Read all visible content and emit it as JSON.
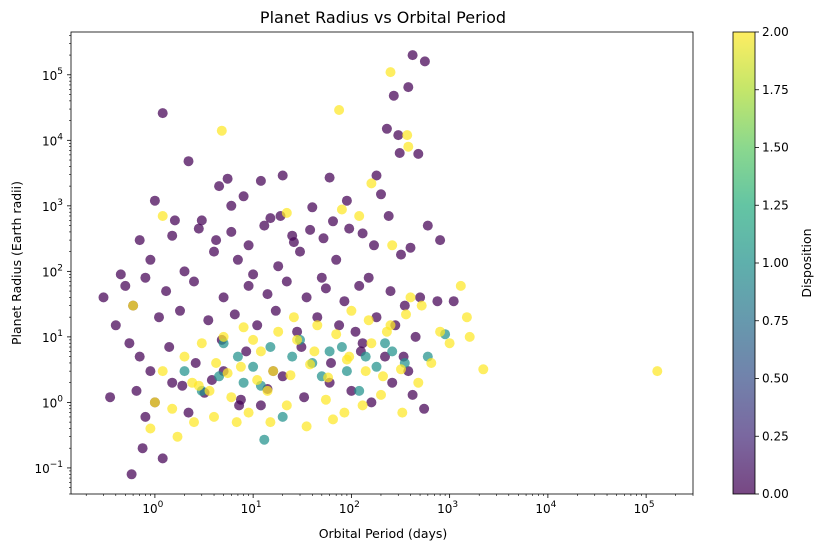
{
  "chart_data": {
    "type": "scatter",
    "title": "Planet Radius vs Orbital Period",
    "xlabel": "Orbital Period (days)",
    "ylabel": "Planet Radius (Earth radii)",
    "xscale": "log",
    "yscale": "log",
    "xlim": [
      0.14,
      300000
    ],
    "ylim": [
      0.04,
      450000
    ],
    "x_ticks": [
      {
        "value": 1,
        "base": "10",
        "exp": "0"
      },
      {
        "value": 10,
        "base": "10",
        "exp": "1"
      },
      {
        "value": 100,
        "base": "10",
        "exp": "2"
      },
      {
        "value": 1000,
        "base": "10",
        "exp": "3"
      },
      {
        "value": 10000,
        "base": "10",
        "exp": "4"
      },
      {
        "value": 100000,
        "base": "10",
        "exp": "5"
      }
    ],
    "y_ticks": [
      {
        "value": 0.1,
        "base": "10",
        "exp": "−1"
      },
      {
        "value": 1,
        "base": "10",
        "exp": "0"
      },
      {
        "value": 10,
        "base": "10",
        "exp": "1"
      },
      {
        "value": 100,
        "base": "10",
        "exp": "2"
      },
      {
        "value": 1000,
        "base": "10",
        "exp": "3"
      },
      {
        "value": 10000,
        "base": "10",
        "exp": "4"
      },
      {
        "value": 100000,
        "base": "10",
        "exp": "5"
      }
    ],
    "grid": false,
    "colorbar": {
      "label": "Disposition",
      "colormap": "viridis",
      "range": [
        0,
        2
      ],
      "ticks": [
        "0.00",
        "0.25",
        "0.50",
        "0.75",
        "1.00",
        "1.25",
        "1.50",
        "1.75",
        "2.00"
      ]
    },
    "colors": {
      "low": "#440154",
      "mid": "#21918c",
      "high": "#fde725"
    },
    "series": [
      {
        "color_value": 0,
        "points": [
          [
            1.2,
            26000
          ],
          [
            2.2,
            4800
          ],
          [
            5.5,
            2600
          ],
          [
            12,
            2400
          ],
          [
            20,
            2900
          ],
          [
            60,
            2700
          ],
          [
            180,
            2900
          ],
          [
            230,
            15000
          ],
          [
            270,
            48000
          ],
          [
            300,
            12000
          ],
          [
            380,
            65000
          ],
          [
            420,
            200000
          ],
          [
            560,
            160000
          ],
          [
            480,
            6200
          ],
          [
            310,
            6400
          ],
          [
            1.0,
            1200
          ],
          [
            4.5,
            2000
          ],
          [
            8,
            1400
          ],
          [
            40,
            950
          ],
          [
            90,
            1200
          ],
          [
            200,
            1500
          ],
          [
            400,
            230
          ],
          [
            600,
            500
          ],
          [
            800,
            300
          ],
          [
            750,
            35
          ],
          [
            1100,
            35
          ],
          [
            1.5,
            350
          ],
          [
            0.7,
            300
          ],
          [
            3,
            600
          ],
          [
            6,
            400
          ],
          [
            15,
            650
          ],
          [
            25,
            350
          ],
          [
            0.9,
            150
          ],
          [
            2,
            100
          ],
          [
            4,
            200
          ],
          [
            7,
            150
          ],
          [
            10,
            90
          ],
          [
            18,
            120
          ],
          [
            30,
            200
          ],
          [
            50,
            80
          ],
          [
            70,
            150
          ],
          [
            120,
            60
          ],
          [
            0.5,
            60
          ],
          [
            0.8,
            80
          ],
          [
            1.3,
            50
          ],
          [
            2.5,
            70
          ],
          [
            5,
            40
          ],
          [
            9,
            60
          ],
          [
            14,
            45
          ],
          [
            22,
            70
          ],
          [
            35,
            40
          ],
          [
            55,
            55
          ],
          [
            85,
            35
          ],
          [
            150,
            80
          ],
          [
            250,
            50
          ],
          [
            350,
            30
          ],
          [
            500,
            40
          ],
          [
            0.6,
            30
          ],
          [
            1.1,
            20
          ],
          [
            1.8,
            25
          ],
          [
            3.5,
            18
          ],
          [
            6.5,
            22
          ],
          [
            11,
            15
          ],
          [
            17,
            25
          ],
          [
            28,
            12
          ],
          [
            45,
            20
          ],
          [
            75,
            15
          ],
          [
            110,
            12
          ],
          [
            180,
            20
          ],
          [
            280,
            15
          ],
          [
            450,
            10
          ],
          [
            0.4,
            15
          ],
          [
            0.55,
            8
          ],
          [
            0.65,
            1.5
          ],
          [
            0.8,
            0.6
          ],
          [
            0.58,
            0.08
          ],
          [
            0.75,
            0.2
          ],
          [
            1.2,
            0.14
          ],
          [
            1.0,
            1.0
          ],
          [
            1.5,
            2
          ],
          [
            2.2,
            0.7
          ],
          [
            3.2,
            1.4
          ],
          [
            5,
            3
          ],
          [
            7.5,
            1.1
          ],
          [
            12,
            0.9
          ],
          [
            20,
            2.5
          ],
          [
            33,
            1.2
          ],
          [
            60,
            2
          ],
          [
            100,
            1.5
          ],
          [
            160,
            1
          ],
          [
            260,
            2
          ],
          [
            420,
            1.3
          ],
          [
            550,
            0.8
          ],
          [
            380,
            3
          ],
          [
            220,
            5
          ],
          [
            130,
            8
          ],
          [
            0.35,
            1.2
          ],
          [
            0.3,
            40
          ],
          [
            0.45,
            90
          ],
          [
            1.6,
            600
          ],
          [
            2.8,
            450
          ],
          [
            4.2,
            300
          ],
          [
            6,
            1000
          ],
          [
            9,
            250
          ],
          [
            13,
            500
          ],
          [
            19,
            700
          ],
          [
            26,
            280
          ],
          [
            38,
            430
          ],
          [
            52,
            320
          ],
          [
            65,
            580
          ],
          [
            95,
            450
          ],
          [
            130,
            380
          ],
          [
            170,
            250
          ],
          [
            240,
            700
          ],
          [
            320,
            180
          ],
          [
            0.7,
            5
          ],
          [
            1.4,
            7
          ],
          [
            2.6,
            4
          ],
          [
            4.8,
            9
          ],
          [
            8.5,
            6
          ],
          [
            16,
            3
          ],
          [
            31,
            7
          ],
          [
            62,
            4
          ],
          [
            125,
            6
          ],
          [
            340,
            5
          ],
          [
            0.9,
            3
          ],
          [
            1.9,
            1.8
          ],
          [
            3.8,
            2.2
          ],
          [
            7.2,
            0.9
          ],
          [
            14,
            1.6
          ]
        ]
      },
      {
        "color_value": 1,
        "points": [
          [
            13,
            0.27
          ],
          [
            20,
            0.6
          ],
          [
            4.5,
            2.5
          ],
          [
            7,
            5
          ],
          [
            10,
            3.5
          ],
          [
            15,
            7
          ],
          [
            25,
            5
          ],
          [
            40,
            4
          ],
          [
            60,
            6
          ],
          [
            90,
            3
          ],
          [
            140,
            5
          ],
          [
            220,
            8
          ],
          [
            350,
            4
          ],
          [
            600,
            5
          ],
          [
            900,
            11
          ],
          [
            2,
            3
          ],
          [
            3,
            1.5
          ],
          [
            5,
            8
          ],
          [
            8,
            2
          ],
          [
            12,
            1.8
          ],
          [
            30,
            9
          ],
          [
            50,
            2.5
          ],
          [
            80,
            7
          ],
          [
            120,
            1.5
          ],
          [
            180,
            3.5
          ],
          [
            260,
            6
          ]
        ]
      },
      {
        "color_value": 2,
        "points": [
          [
            250,
            110000
          ],
          [
            75,
            29000
          ],
          [
            4.8,
            14000
          ],
          [
            370,
            12000
          ],
          [
            380,
            8000
          ],
          [
            160,
            2200
          ],
          [
            1.2,
            700
          ],
          [
            22,
            780
          ],
          [
            80,
            880
          ],
          [
            120,
            700
          ],
          [
            260,
            250
          ],
          [
            0.6,
            30
          ],
          [
            1.0,
            1.0
          ],
          [
            1.5,
            0.8
          ],
          [
            2.5,
            0.5
          ],
          [
            4,
            0.6
          ],
          [
            6,
            1.2
          ],
          [
            9,
            0.7
          ],
          [
            14,
            1.5
          ],
          [
            22,
            0.9
          ],
          [
            35,
            0.43
          ],
          [
            55,
            1.1
          ],
          [
            85,
            0.7
          ],
          [
            130,
            0.9
          ],
          [
            200,
            1.3
          ],
          [
            330,
            0.7
          ],
          [
            2,
            5
          ],
          [
            3,
            8
          ],
          [
            5,
            10
          ],
          [
            8,
            14
          ],
          [
            12,
            6
          ],
          [
            18,
            12
          ],
          [
            28,
            9
          ],
          [
            45,
            15
          ],
          [
            70,
            11
          ],
          [
            100,
            25
          ],
          [
            150,
            18
          ],
          [
            230,
            12
          ],
          [
            360,
            22
          ],
          [
            520,
            30
          ],
          [
            800,
            12
          ],
          [
            1300,
            60
          ],
          [
            1500,
            20
          ],
          [
            1600,
            10
          ],
          [
            2200,
            3.2
          ],
          [
            130000,
            3
          ],
          [
            1.2,
            3
          ],
          [
            2.4,
            2
          ],
          [
            3.6,
            1.5
          ],
          [
            5.5,
            2.8
          ],
          [
            7.5,
            3.5
          ],
          [
            11,
            2.2
          ],
          [
            16,
            3
          ],
          [
            24,
            2.6
          ],
          [
            38,
            3.8
          ],
          [
            58,
            2.4
          ],
          [
            90,
            4.5
          ],
          [
            140,
            3
          ],
          [
            210,
            2.5
          ],
          [
            320,
            3.2
          ],
          [
            480,
            2
          ],
          [
            0.9,
            0.4
          ],
          [
            1.7,
            0.3
          ],
          [
            2.8,
            1.8
          ],
          [
            4.2,
            4
          ],
          [
            6.8,
            0.5
          ],
          [
            10,
            9
          ],
          [
            15,
            0.5
          ],
          [
            26,
            20
          ],
          [
            42,
            6
          ],
          [
            65,
            0.55
          ],
          [
            95,
            5
          ],
          [
            160,
            8
          ],
          [
            250,
            15
          ],
          [
            400,
            40
          ],
          [
            650,
            4
          ],
          [
            1000,
            8
          ]
        ]
      }
    ]
  }
}
